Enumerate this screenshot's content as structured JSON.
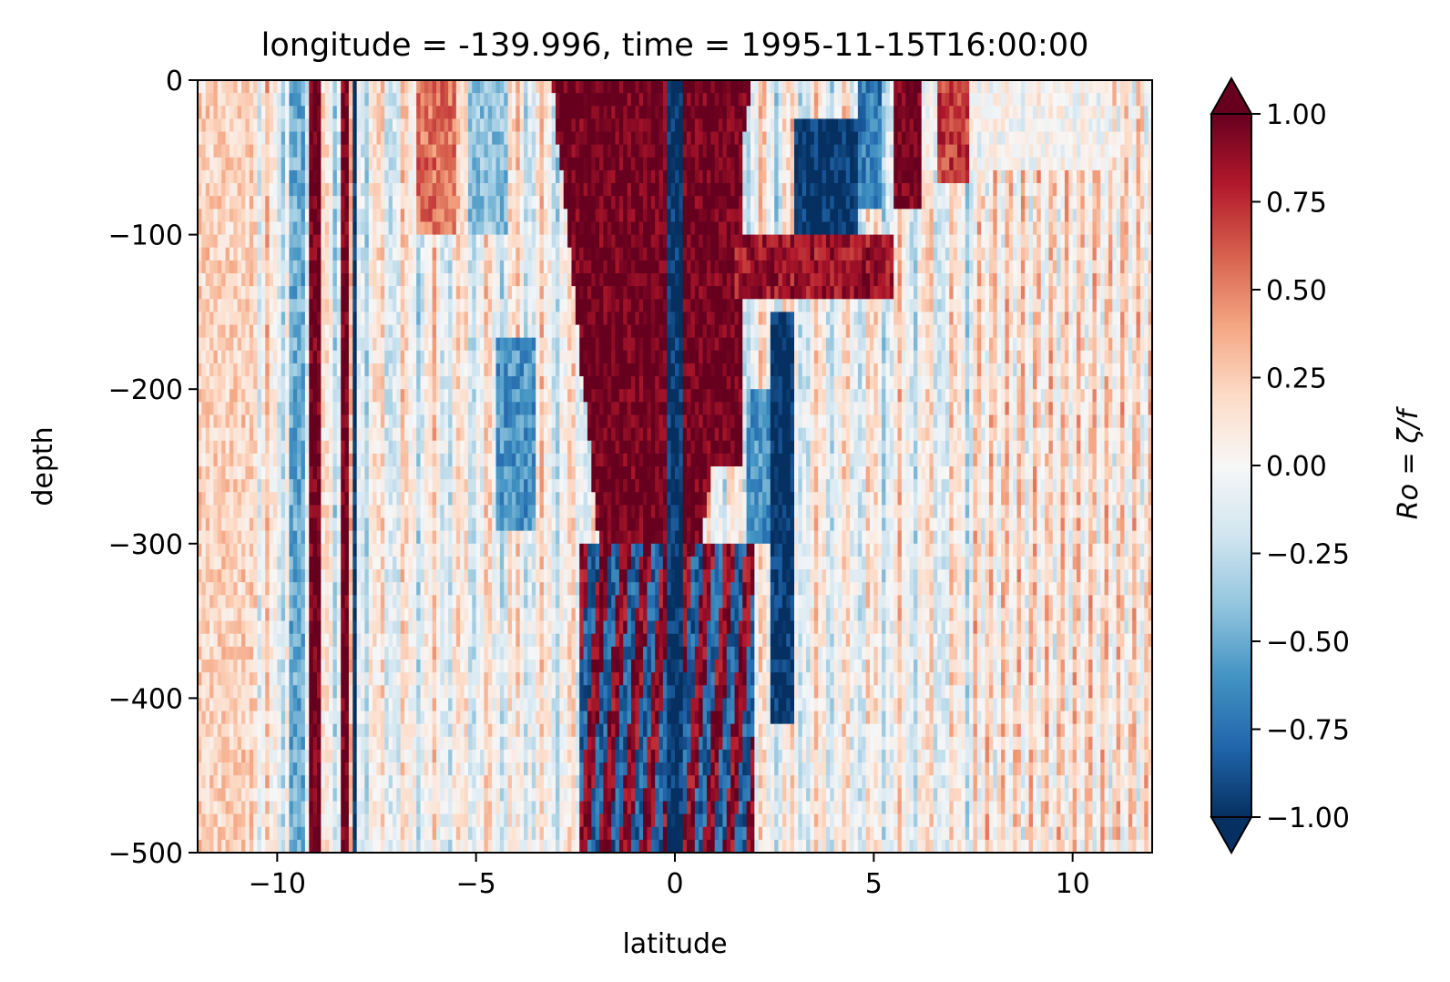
{
  "chart_data": {
    "type": "heatmap",
    "title": "longitude = -139.996, time = 1995-11-15T16:00:00",
    "xlabel": "latitude",
    "ylabel": "depth",
    "xlim": [
      -12,
      12
    ],
    "ylim": [
      -500,
      0
    ],
    "x_ticks": [
      -10,
      -5,
      0,
      5,
      10
    ],
    "x_tick_labels": [
      "−10",
      "−5",
      "0",
      "5",
      "10"
    ],
    "y_ticks": [
      0,
      -100,
      -200,
      -300,
      -400,
      -500
    ],
    "y_tick_labels": [
      "0",
      "−100",
      "−200",
      "−300",
      "−400",
      "−500"
    ],
    "colorbar": {
      "label": "Ro = ζ/f",
      "vmin": -1.0,
      "vmax": 1.0,
      "extend": "both",
      "colormap": "RdBu_r",
      "ticks": [
        1.0,
        0.75,
        0.5,
        0.25,
        0.0,
        -0.25,
        -0.5,
        -0.75,
        -1.0
      ],
      "tick_labels": [
        "1.00",
        "0.75",
        "0.50",
        "0.25",
        "0.00",
        "−0.25",
        "−0.50",
        "−0.75",
        "−1.00"
      ]
    },
    "grid": false,
    "field_description_cells": [
      {
        "lat": [
          -11.9,
          -10.5
        ],
        "depth": [
          0,
          -500
        ],
        "value": 0.2
      },
      {
        "lat": [
          -9.2,
          -8.8
        ],
        "depth": [
          0,
          -500
        ],
        "value": 1.0
      },
      {
        "lat": [
          -8.4,
          -8.2
        ],
        "depth": [
          0,
          -500
        ],
        "value": 1.0
      },
      {
        "lat": [
          -8.1,
          -7.9
        ],
        "depth": [
          0,
          -500
        ],
        "value": -1.0
      },
      {
        "lat": [
          -6.5,
          -5.5
        ],
        "depth": [
          0,
          -100
        ],
        "value": 0.5
      },
      {
        "lat": [
          -2.5,
          -0.2
        ],
        "depth": [
          0,
          -300
        ],
        "value": 1.0
      },
      {
        "lat": [
          -0.2,
          0.2
        ],
        "depth": [
          0,
          -500
        ],
        "value": -1.0
      },
      {
        "lat": [
          0.2,
          1.7
        ],
        "depth": [
          0,
          -250
        ],
        "value": 1.0
      },
      {
        "lat": [
          2.5,
          3.0
        ],
        "depth": [
          -150,
          -420
        ],
        "value": -1.0
      },
      {
        "lat": [
          3.0,
          4.5
        ],
        "depth": [
          -30,
          -100
        ],
        "value": -1.0
      },
      {
        "lat": [
          5.5,
          6.2
        ],
        "depth": [
          0,
          -80
        ],
        "value": 1.0
      },
      {
        "lat": [
          7.5,
          12
        ],
        "depth": [
          -50,
          -500
        ],
        "value": 0.1
      }
    ]
  }
}
